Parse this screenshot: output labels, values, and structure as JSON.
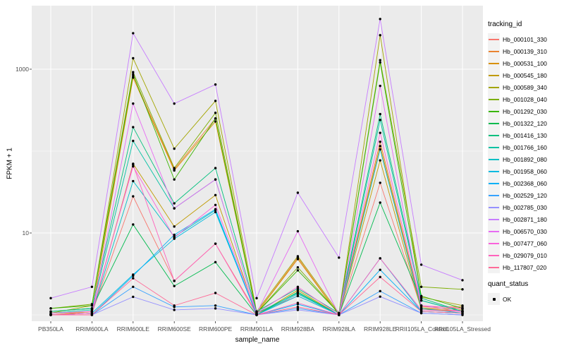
{
  "figure": {
    "background": "#FFFFFF",
    "panel_background": "#EBEBEB",
    "grid_color": "#FFFFFF",
    "tick_color": "#333333",
    "tick_label_color": "#4D4D4D",
    "point_color": "#000000"
  },
  "chart_data": {
    "type": "line",
    "title": "",
    "xlabel": "sample_name",
    "ylabel": "FPKM + 1",
    "y_scale": "log10",
    "legend_title": "tracking_id",
    "legend_position": "right",
    "grid": "on",
    "y_axis": {
      "tick_values": [
        10,
        1000
      ],
      "tick_labels": [
        "10",
        "1000"
      ],
      "minor_grid_values": [
        1,
        100
      ],
      "approx_range": [
        0.9,
        6000
      ]
    },
    "categories": [
      "PB350LA",
      "RRIM600LA",
      "RRIM600LE",
      "RRIM600SE",
      "RRIM600PE",
      "RRIM901LA",
      "RRIM928BA",
      "RRIM928LA",
      "RRIM928LE",
      "RRII105LA_Control",
      "RRII105LA_Stressed"
    ],
    "series": [
      {
        "name": "Hb_000101_330",
        "color": "#F8766D",
        "values": [
          1.0,
          1.05,
          28,
          2.6,
          7.4,
          1.05,
          1.7,
          1.0,
          41,
          1.2,
          1.1
        ]
      },
      {
        "name": "Hb_000139_310",
        "color": "#EA8331",
        "values": [
          1.0,
          1.1,
          830,
          60,
          250,
          1.05,
          5.0,
          1.0,
          130,
          1.25,
          1.25
        ]
      },
      {
        "name": "Hb_000531_100",
        "color": "#D89000",
        "values": [
          1.0,
          1.1,
          790,
          58,
          230,
          1.05,
          4.8,
          1.0,
          115,
          1.2,
          1.2
        ]
      },
      {
        "name": "Hb_000545_180",
        "color": "#C09B00",
        "values": [
          1.0,
          1.05,
          70,
          12,
          29,
          1.0,
          2.0,
          1.0,
          77,
          1.15,
          1.15
        ]
      },
      {
        "name": "Hb_000589_340",
        "color": "#A3A500",
        "values": [
          1.05,
          1.3,
          1360,
          107,
          410,
          1.1,
          5.2,
          1.05,
          2600,
          1.65,
          1.3
        ]
      },
      {
        "name": "Hb_001028_040",
        "color": "#7CAE00",
        "values": [
          1.2,
          1.35,
          920,
          62,
          293,
          1.05,
          3.8,
          1.05,
          1290,
          2.2,
          2.05
        ]
      },
      {
        "name": "Hb_001292_030",
        "color": "#39B600",
        "values": [
          1.2,
          1.3,
          870,
          45,
          250,
          1.05,
          3.5,
          1.05,
          1210,
          1.7,
          1.2
        ]
      },
      {
        "name": "Hb_001322_120",
        "color": "#00BB4E",
        "values": [
          1.1,
          1.2,
          12.7,
          2.25,
          4.4,
          1.0,
          1.9,
          1.0,
          23.5,
          1.5,
          1.1
        ]
      },
      {
        "name": "Hb_001416_130",
        "color": "#00BF7D",
        "values": [
          1.1,
          1.2,
          196,
          23,
          62,
          1.1,
          2.1,
          1.05,
          283,
          1.6,
          1.1
        ]
      },
      {
        "name": "Hb_001766_160",
        "color": "#00C1A3",
        "values": [
          1.05,
          1.15,
          133,
          20,
          45,
          1.05,
          1.85,
          1.0,
          240,
          1.5,
          1.1
        ]
      },
      {
        "name": "Hb_001892_080",
        "color": "#00BFC4",
        "values": [
          1.0,
          1.05,
          43,
          9,
          19,
          1.0,
          1.8,
          1.0,
          105,
          1.2,
          1.05
        ]
      },
      {
        "name": "Hb_001958_060",
        "color": "#00BAE0",
        "values": [
          1.0,
          1.05,
          3.1,
          8.5,
          18,
          1.0,
          1.7,
          1.0,
          4.9,
          1.1,
          1.05
        ]
      },
      {
        "name": "Hb_002368_060",
        "color": "#00B0F6",
        "values": [
          1.0,
          1.0,
          3.0,
          9.5,
          19.5,
          1.0,
          1.35,
          1.0,
          3.55,
          1.1,
          1.05
        ]
      },
      {
        "name": "Hb_002529_120",
        "color": "#35A2FF",
        "values": [
          1.0,
          1.0,
          2.2,
          1.25,
          1.3,
          1.0,
          1.2,
          1.0,
          1.95,
          1.05,
          1.0
        ]
      },
      {
        "name": "Hb_002785_030",
        "color": "#9590FF",
        "values": [
          1.0,
          1.0,
          1.66,
          1.15,
          1.2,
          1.0,
          1.15,
          1.0,
          1.67,
          1.05,
          1.0
        ]
      },
      {
        "name": "Hb_002871_180",
        "color": "#C77CFF",
        "values": [
          1.6,
          2.2,
          2750,
          380,
          650,
          1.6,
          31,
          5.0,
          4100,
          4.1,
          2.65
        ]
      },
      {
        "name": "Hb_006570_030",
        "color": "#E76BF3",
        "values": [
          1.0,
          1.05,
          380,
          20,
          45,
          1.05,
          10.5,
          1.0,
          625,
          1.3,
          1.1
        ]
      },
      {
        "name": "Hb_007477_060",
        "color": "#FA62DB",
        "values": [
          1.05,
          1.1,
          65,
          8.8,
          22,
          1.05,
          2.2,
          1.0,
          167,
          1.3,
          1.2
        ]
      },
      {
        "name": "Hb_029079_010",
        "color": "#FF62BC",
        "values": [
          1.0,
          1.05,
          68,
          2.6,
          7.4,
          1.0,
          1.4,
          1.0,
          4.9,
          1.15,
          1.1
        ]
      },
      {
        "name": "Hb_117807_020",
        "color": "#FF6A98",
        "values": [
          1.0,
          1.0,
          2.8,
          1.3,
          1.85,
          1.0,
          1.25,
          1.0,
          2.9,
          1.1,
          1.05
        ]
      }
    ],
    "quant_legend": {
      "title": "quant_status",
      "items": [
        {
          "label": "OK",
          "color": "#000000"
        }
      ]
    }
  }
}
